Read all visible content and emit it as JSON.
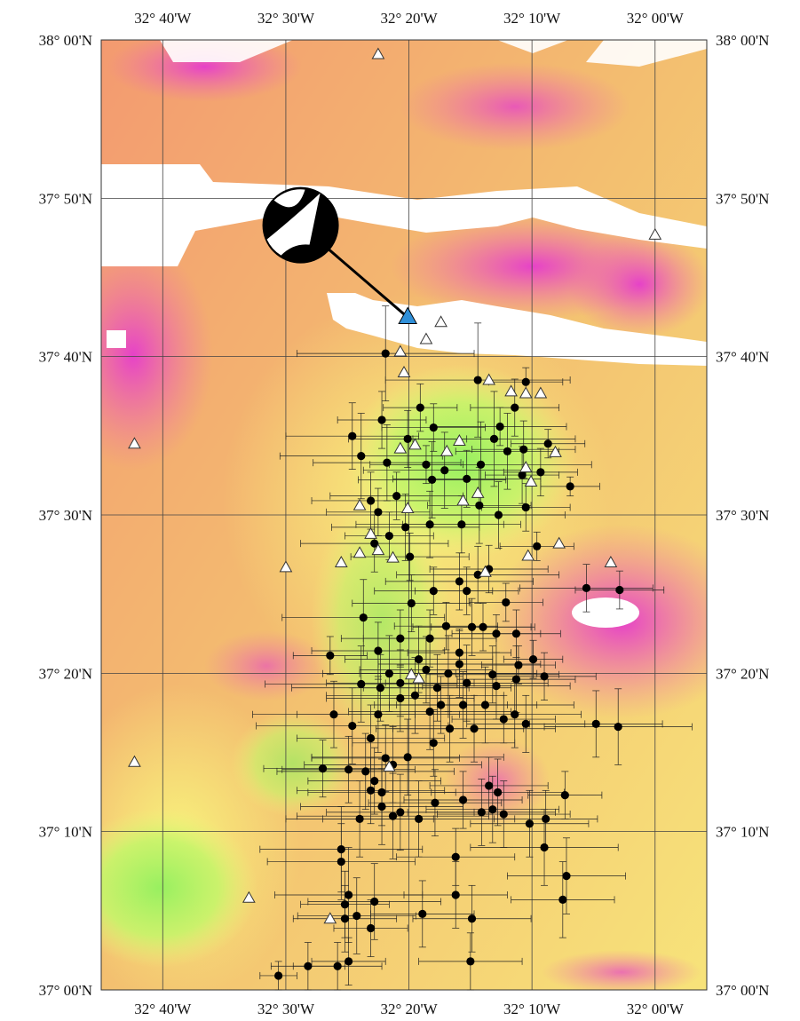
{
  "map": {
    "top_labels": [
      "32° 40'W",
      "32° 30'W",
      "32° 20'W",
      "32° 10'W",
      "32° 00'W"
    ],
    "bottom_labels": [
      "32° 40'W",
      "32° 30'W",
      "32° 20'W",
      "32° 10'W",
      "32° 00'W"
    ],
    "left_labels": [
      "38° 00'N",
      "37° 50'N",
      "37° 40'N",
      "37° 30'N",
      "37° 20'N",
      "37° 10'N",
      "37° 00'N"
    ],
    "right_labels": [
      "38° 00'N",
      "37° 50'N",
      "37° 40'N",
      "37° 30'N",
      "37° 20'N",
      "37° 10'N",
      "37° 00'N"
    ],
    "lon_ticks": [
      -32.6667,
      -32.5,
      -32.3333,
      -32.1667,
      -32.0
    ],
    "lat_ticks": [
      38.0,
      37.8333,
      37.6667,
      37.5,
      37.3333,
      37.1667,
      37.0
    ],
    "lon_range": [
      -32.75,
      -31.93
    ],
    "lat_range": [
      37.0,
      38.0
    ],
    "colors": {
      "magenta": "#e040c8",
      "pink": "#f06aa8",
      "orange": "#f2a86a",
      "yellow": "#f7f07a",
      "green": "#a8f25a",
      "white_gap": "#ffffff"
    },
    "focal_mechanism": {
      "lon": -32.48,
      "lat": 37.805,
      "arrow_to_lon": -32.335,
      "arrow_to_lat": 37.708,
      "label": "beach-ball"
    },
    "mainshock": {
      "lon": -32.333,
      "lat": 37.708,
      "color": "#2f8fd8"
    },
    "earthquakes": [
      [
        -32.365,
        37.67,
        0.24,
        0.1
      ],
      [
        -32.318,
        37.613,
        0.1,
        0.05
      ],
      [
        -32.37,
        37.6,
        0.12,
        0.06
      ],
      [
        -32.3,
        37.592,
        0.14,
        0.05
      ],
      [
        -32.41,
        37.583,
        0.18,
        0.07
      ],
      [
        -32.24,
        37.642,
        0.25,
        0.12
      ],
      [
        -32.218,
        37.58,
        0.22,
        0.1
      ],
      [
        -32.2,
        37.567,
        0.14,
        0.08
      ],
      [
        -32.236,
        37.553,
        0.3,
        0.09
      ],
      [
        -32.255,
        37.538,
        0.2,
        0.06
      ],
      [
        -32.285,
        37.547,
        0.22,
        0.08
      ],
      [
        -32.302,
        37.537,
        0.2,
        0.08
      ],
      [
        -32.31,
        37.553,
        0.1,
        0.04
      ],
      [
        -32.335,
        37.58,
        0.16,
        0.06
      ],
      [
        -32.363,
        37.555,
        0.2,
        0.08
      ],
      [
        -32.398,
        37.562,
        0.22,
        0.09
      ],
      [
        -32.385,
        37.515,
        0.16,
        0.06
      ],
      [
        -32.35,
        37.52,
        0.18,
        0.05
      ],
      [
        -32.375,
        37.503,
        0.14,
        0.05
      ],
      [
        -32.38,
        37.47,
        0.2,
        0.06
      ],
      [
        -32.36,
        37.478,
        0.12,
        0.05
      ],
      [
        -32.338,
        37.487,
        0.2,
        0.07
      ],
      [
        -32.332,
        37.456,
        0.16,
        0.05
      ],
      [
        -32.305,
        37.49,
        0.2,
        0.07
      ],
      [
        -32.262,
        37.49,
        0.16,
        0.06
      ],
      [
        -32.238,
        37.51,
        0.14,
        0.08
      ],
      [
        -32.212,
        37.5,
        0.18,
        0.07
      ],
      [
        -32.175,
        37.508,
        0.12,
        0.05
      ],
      [
        -32.18,
        37.542,
        0.1,
        0.06
      ],
      [
        -32.155,
        37.545,
        0.1,
        0.05
      ],
      [
        -32.145,
        37.575,
        0.1,
        0.03
      ],
      [
        -32.178,
        37.569,
        0.14,
        0.06
      ],
      [
        -32.19,
        37.613,
        0.12,
        0.06
      ],
      [
        -32.21,
        37.593,
        0.18,
        0.04
      ],
      [
        -32.175,
        37.64,
        0.1,
        0.03
      ],
      [
        -32.115,
        37.53,
        0.08,
        0.02
      ],
      [
        -32.16,
        37.467,
        0.1,
        0.03
      ],
      [
        -32.265,
        37.43,
        0.2,
        0.06
      ],
      [
        -32.255,
        37.42,
        0.14,
        0.05
      ],
      [
        -32.3,
        37.42,
        0.16,
        0.05
      ],
      [
        -32.24,
        37.437,
        0.22,
        0.06
      ],
      [
        -32.225,
        37.443,
        0.16,
        0.05
      ],
      [
        -32.202,
        37.408,
        0.1,
        0.04
      ],
      [
        -32.093,
        37.423,
        0.18,
        0.05
      ],
      [
        -32.048,
        37.421,
        0.12,
        0.04
      ],
      [
        -32.395,
        37.392,
        0.22,
        0.08
      ],
      [
        -32.33,
        37.407,
        0.16,
        0.06
      ],
      [
        -32.305,
        37.37,
        0.18,
        0.06
      ],
      [
        -32.283,
        37.383,
        0.14,
        0.05
      ],
      [
        -32.32,
        37.348,
        0.2,
        0.07
      ],
      [
        -32.345,
        37.37,
        0.16,
        0.06
      ],
      [
        -32.375,
        37.357,
        0.18,
        0.06
      ],
      [
        -32.44,
        37.352,
        0.1,
        0.04
      ],
      [
        -32.265,
        37.355,
        0.14,
        0.05
      ],
      [
        -32.248,
        37.382,
        0.16,
        0.06
      ],
      [
        -32.233,
        37.382,
        0.14,
        0.05
      ],
      [
        -32.215,
        37.375,
        0.12,
        0.04
      ],
      [
        -32.188,
        37.375,
        0.12,
        0.05
      ],
      [
        -32.185,
        37.342,
        0.1,
        0.04
      ],
      [
        -32.165,
        37.348,
        0.08,
        0.04
      ],
      [
        -32.265,
        37.343,
        0.22,
        0.07
      ],
      [
        -32.28,
        37.333,
        0.24,
        0.08
      ],
      [
        -32.295,
        37.318,
        0.2,
        0.07
      ],
      [
        -32.31,
        37.337,
        0.18,
        0.07
      ],
      [
        -32.345,
        37.323,
        0.2,
        0.07
      ],
      [
        -32.36,
        37.333,
        0.18,
        0.08
      ],
      [
        -32.372,
        37.318,
        0.24,
        0.07
      ],
      [
        -32.398,
        37.322,
        0.26,
        0.08
      ],
      [
        -32.255,
        37.323,
        0.22,
        0.08
      ],
      [
        -32.22,
        37.332,
        0.18,
        0.06
      ],
      [
        -32.215,
        37.32,
        0.2,
        0.07
      ],
      [
        -32.188,
        37.327,
        0.16,
        0.07
      ],
      [
        -32.15,
        37.33,
        0.14,
        0.05
      ],
      [
        -32.23,
        37.3,
        0.24,
        0.08
      ],
      [
        -32.26,
        37.3,
        0.2,
        0.07
      ],
      [
        -32.29,
        37.3,
        0.18,
        0.06
      ],
      [
        -32.305,
        37.293,
        0.22,
        0.08
      ],
      [
        -32.325,
        37.31,
        0.24,
        0.08
      ],
      [
        -32.345,
        37.307,
        0.2,
        0.07
      ],
      [
        -32.375,
        37.29,
        0.22,
        0.08
      ],
      [
        -32.385,
        37.265,
        0.2,
        0.07
      ],
      [
        -32.41,
        37.278,
        0.26,
        0.08
      ],
      [
        -32.435,
        37.29,
        0.22,
        0.07
      ],
      [
        -32.19,
        37.29,
        0.18,
        0.07
      ],
      [
        -32.175,
        37.28,
        0.16,
        0.06
      ],
      [
        -32.08,
        37.28,
        0.18,
        0.07
      ],
      [
        -32.05,
        37.277,
        0.2,
        0.08
      ],
      [
        -32.205,
        37.285,
        0.14,
        0.05
      ],
      [
        -32.245,
        37.275,
        0.22,
        0.07
      ],
      [
        -32.278,
        37.275,
        0.2,
        0.07
      ],
      [
        -32.3,
        37.26,
        0.22,
        0.07
      ],
      [
        -32.335,
        37.245,
        0.26,
        0.08
      ],
      [
        -32.355,
        37.237,
        0.24,
        0.08
      ],
      [
        -32.365,
        37.244,
        0.2,
        0.07
      ],
      [
        -32.392,
        37.23,
        0.24,
        0.08
      ],
      [
        -32.385,
        37.21,
        0.2,
        0.07
      ],
      [
        -32.38,
        37.22,
        0.18,
        0.07
      ],
      [
        -32.37,
        37.208,
        0.2,
        0.07
      ],
      [
        -32.45,
        37.233,
        0.16,
        0.06
      ],
      [
        -32.415,
        37.232,
        0.18,
        0.07
      ],
      [
        -32.37,
        37.193,
        0.22,
        0.08
      ],
      [
        -32.345,
        37.187,
        0.2,
        0.08
      ],
      [
        -32.32,
        37.18,
        0.26,
        0.08
      ],
      [
        -32.298,
        37.197,
        0.18,
        0.07
      ],
      [
        -32.26,
        37.2,
        0.16,
        0.06
      ],
      [
        -32.235,
        37.187,
        0.2,
        0.07
      ],
      [
        -32.225,
        37.215,
        0.16,
        0.06
      ],
      [
        -32.22,
        37.19,
        0.18,
        0.07
      ],
      [
        -32.205,
        37.185,
        0.18,
        0.07
      ],
      [
        -32.17,
        37.175,
        0.16,
        0.07
      ],
      [
        -32.148,
        37.18,
        0.14,
        0.06
      ],
      [
        -32.355,
        37.183,
        0.26,
        0.09
      ],
      [
        -32.4,
        37.18,
        0.2,
        0.08
      ],
      [
        -32.425,
        37.148,
        0.22,
        0.09
      ],
      [
        -32.415,
        37.1,
        0.2,
        0.1
      ],
      [
        -32.425,
        37.135,
        0.2,
        0.08
      ],
      [
        -32.404,
        37.078,
        0.16,
        0.08
      ],
      [
        -32.42,
        37.075,
        0.14,
        0.07
      ],
      [
        -32.38,
        37.093,
        0.18,
        0.08
      ],
      [
        -32.315,
        37.08,
        0.14,
        0.07
      ],
      [
        -32.248,
        37.075,
        0.16,
        0.07
      ],
      [
        -32.15,
        37.15,
        0.2,
        0.08
      ],
      [
        -32.12,
        37.12,
        0.16,
        0.08
      ],
      [
        -32.125,
        37.095,
        0.14,
        0.08
      ],
      [
        -32.42,
        37.09,
        0.12,
        0.07
      ],
      [
        -32.47,
        37.025,
        0.1,
        0.05
      ],
      [
        -32.51,
        37.015,
        0.05,
        0.03
      ],
      [
        -32.213,
        37.208,
        0.18,
        0.07
      ],
      [
        -32.122,
        37.205,
        0.1,
        0.05
      ],
      [
        -32.27,
        37.14,
        0.16,
        0.06
      ],
      [
        -32.27,
        37.1,
        0.14,
        0.07
      ],
      [
        -32.25,
        37.03,
        0.14,
        0.06
      ],
      [
        -32.415,
        37.03,
        0.1,
        0.05
      ],
      [
        -32.43,
        37.025,
        0.12,
        0.05
      ],
      [
        -32.385,
        37.065,
        0.1,
        0.06
      ]
    ],
    "stations": [
      [
        -32.375,
        37.985
      ],
      [
        -32.0,
        37.795
      ],
      [
        -32.29,
        37.703
      ],
      [
        -32.31,
        37.685
      ],
      [
        -32.345,
        37.672
      ],
      [
        -32.34,
        37.65
      ],
      [
        -32.225,
        37.642
      ],
      [
        -32.195,
        37.63
      ],
      [
        -32.175,
        37.628
      ],
      [
        -32.155,
        37.628
      ],
      [
        -32.265,
        37.578
      ],
      [
        -32.282,
        37.567
      ],
      [
        -32.345,
        37.57
      ],
      [
        -32.325,
        37.574
      ],
      [
        -32.135,
        37.566
      ],
      [
        -32.175,
        37.55
      ],
      [
        -32.168,
        37.535
      ],
      [
        -32.26,
        37.515
      ],
      [
        -32.335,
        37.507
      ],
      [
        -32.4,
        37.51
      ],
      [
        -32.24,
        37.523
      ],
      [
        -32.5,
        37.445
      ],
      [
        -32.425,
        37.45
      ],
      [
        -32.4,
        37.46
      ],
      [
        -32.385,
        37.48
      ],
      [
        -32.375,
        37.463
      ],
      [
        -32.355,
        37.455
      ],
      [
        -32.172,
        37.457
      ],
      [
        -32.13,
        37.47
      ],
      [
        -32.06,
        37.45
      ],
      [
        -32.23,
        37.44
      ],
      [
        -32.33,
        37.332
      ],
      [
        -32.32,
        37.328
      ],
      [
        -32.705,
        37.575
      ],
      [
        -32.705,
        37.24
      ],
      [
        -32.55,
        37.097
      ],
      [
        -32.44,
        37.075
      ],
      [
        -32.36,
        37.235
      ]
    ]
  }
}
